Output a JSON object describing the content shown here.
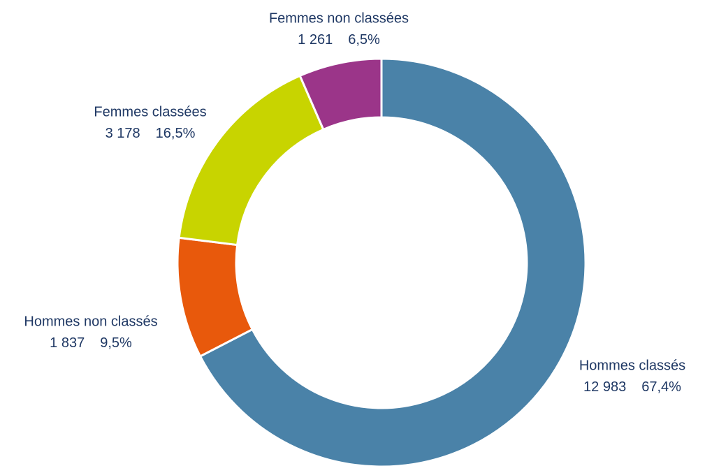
{
  "chart_data": {
    "type": "donut",
    "categories": [
      "Hommes classés",
      "Hommes non classés",
      "Femmes classées",
      "Femmes non classées"
    ],
    "values": [
      12983,
      1837,
      3178,
      1261
    ],
    "value_labels": [
      "12 983",
      "1 837",
      "3 178",
      "1 261"
    ],
    "percentages": [
      67.4,
      9.5,
      16.5,
      6.5
    ],
    "percentage_labels": [
      "67,4%",
      "9,5%",
      "16,5%",
      "6,5%"
    ],
    "colors": [
      "#4a82a8",
      "#e8590c",
      "#c8d400",
      "#9b3589"
    ]
  }
}
